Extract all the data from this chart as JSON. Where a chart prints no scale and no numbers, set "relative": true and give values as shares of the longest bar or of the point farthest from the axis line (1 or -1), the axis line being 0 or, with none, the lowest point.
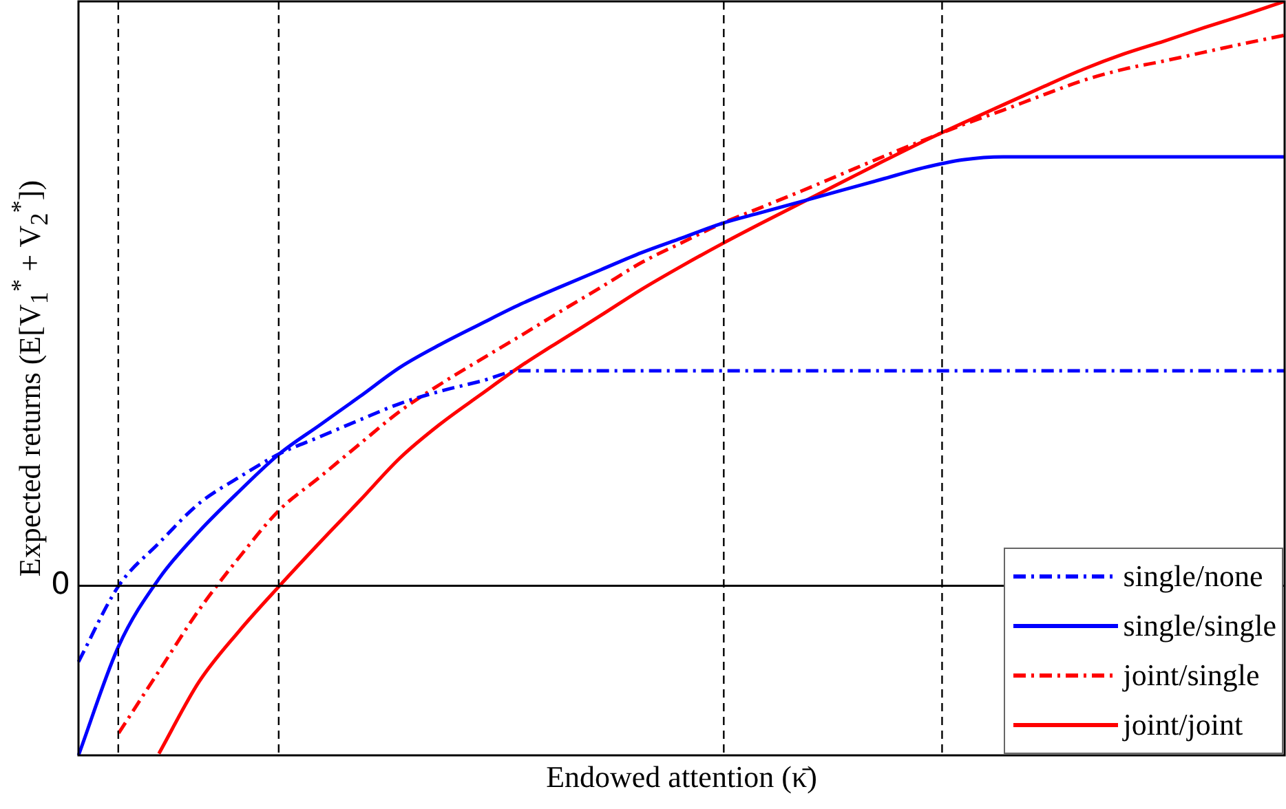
{
  "chart_data": {
    "type": "line",
    "relative": true,
    "xlabel": "Endowed attention (κ̄)",
    "ylabel": "Expected returns (E[V$_{1}$$^{*}$ + V$_{2}$$^{*}$])",
    "legend": "bottom right",
    "marker": "none",
    "categories": [
      null,
      null,
      null,
      null,
      null,
      null,
      null,
      null,
      null,
      null,
      null,
      null,
      null,
      null,
      null,
      null,
      null,
      null,
      null,
      null,
      null,
      null,
      null,
      null,
      null,
      null,
      null,
      null,
      null,
      null,
      null
    ],
    "annotations": [
      "0"
    ],
    "grid": "x",
    "series": [
      {
        "name": "single/none",
        "color": "#0000ff",
        "line_style": "dashed",
        "values": [
          -0.13,
          0,
          0.073,
          0.141,
          0.186,
          0.226,
          0.255,
          0.284,
          0.312,
          0.333,
          0.35,
          0.368,
          0.368,
          0.368,
          0.368,
          0.368,
          0.368,
          0.368,
          0.368,
          0.368,
          0.368,
          0.368,
          0.368,
          0.368,
          0.368,
          0.368,
          0.368,
          0.368,
          0.368,
          0.368,
          0.368
        ]
      },
      {
        "name": "single/single",
        "color": "#0000ff",
        "line_style": "solid",
        "values": [
          -0.29,
          -0.103,
          0.012,
          0.093,
          0.162,
          0.226,
          0.275,
          0.324,
          0.374,
          0.413,
          0.448,
          0.482,
          0.512,
          0.541,
          0.57,
          0.595,
          0.62,
          0.639,
          0.658,
          0.677,
          0.696,
          0.715,
          0.729,
          0.734,
          0.734,
          0.734,
          0.734,
          0.734,
          0.734,
          0.734,
          0.734
        ]
      },
      {
        "name": "joint/single",
        "color": "#ff0000",
        "line_style": "dashed",
        "values": [
          null,
          -0.252,
          -0.146,
          -0.041,
          0.049,
          0.13,
          0.186,
          0.243,
          0.299,
          0.345,
          0.387,
          0.428,
          0.47,
          0.511,
          0.553,
          0.587,
          0.62,
          0.648,
          0.676,
          0.705,
          0.734,
          0.762,
          0.789,
          0.814,
          0.84,
          0.865,
          0.884,
          0.898,
          0.913,
          0.928,
          0.942
        ]
      },
      {
        "name": "joint/joint",
        "color": "#ff0000",
        "line_style": "solid",
        "values": [
          null,
          null,
          -0.287,
          -0.164,
          -0.077,
          0,
          0.074,
          0.146,
          0.219,
          0.277,
          0.327,
          0.376,
          0.42,
          0.463,
          0.507,
          0.547,
          0.585,
          0.621,
          0.656,
          0.691,
          0.726,
          0.76,
          0.792,
          0.823,
          0.854,
          0.884,
          0.91,
          0.932,
          0.955,
          0.977,
          1
        ]
      }
    ]
  }
}
